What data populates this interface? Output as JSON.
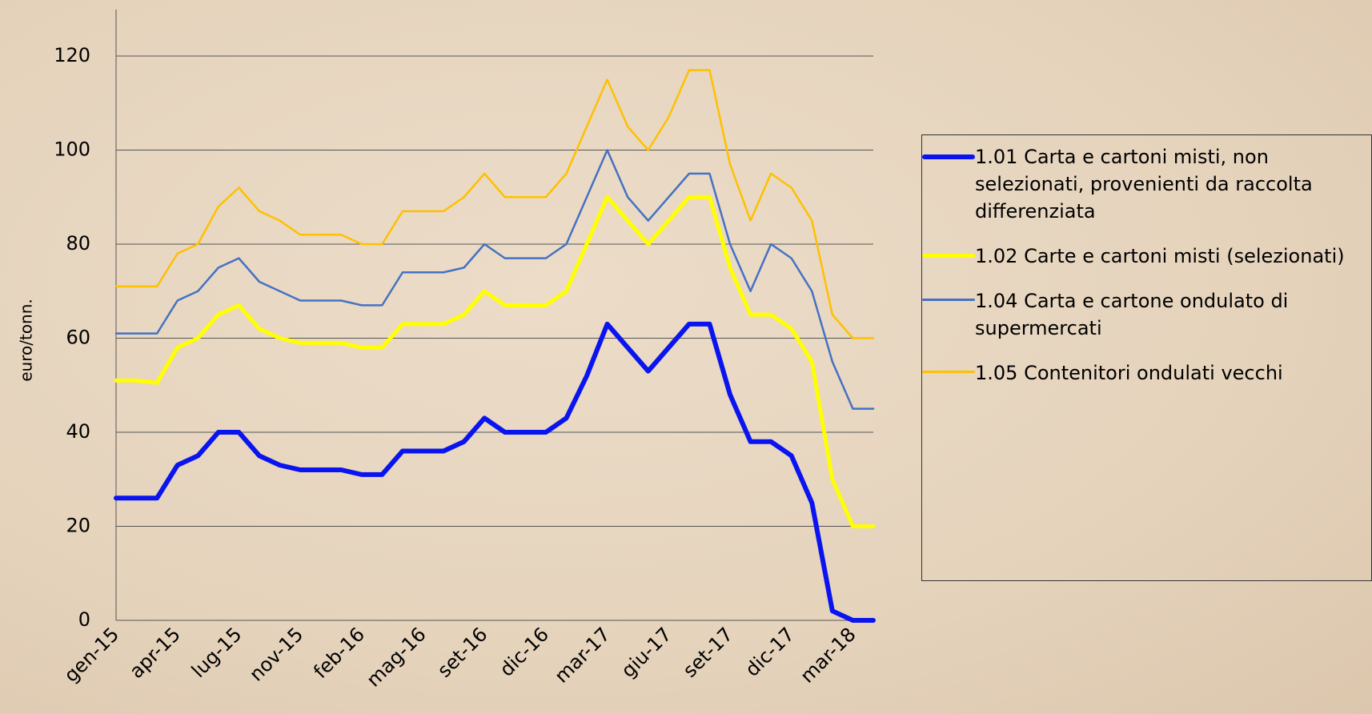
{
  "chart_data": {
    "type": "line",
    "y_label": "euro/tonn.",
    "categories": [
      "gen-15",
      null,
      null,
      "apr-15",
      null,
      null,
      "lug-15",
      null,
      null,
      "nov-15",
      null,
      null,
      "feb-16",
      null,
      null,
      "mag-16",
      null,
      null,
      "set-16",
      null,
      null,
      "dic-16",
      null,
      null,
      "mar-17",
      null,
      null,
      "giu-17",
      null,
      null,
      "set-17",
      null,
      null,
      "dic-17",
      null,
      null,
      "mar-18",
      null
    ],
    "series": [
      {
        "name": "1.01 Carta e cartoni misti, non selezionati, provenienti da raccolta differenziata",
        "color": "#0a14f0",
        "width": 6,
        "values": [
          26,
          26,
          26,
          33,
          35,
          40,
          40,
          35,
          33,
          32,
          32,
          32,
          31,
          31,
          36,
          36,
          36,
          38,
          43,
          40,
          40,
          40,
          43,
          52,
          63,
          58,
          53,
          58,
          63,
          63,
          48,
          38,
          38,
          35,
          25,
          2,
          0,
          0
        ]
      },
      {
        "name": "1.02 Carte e cartoni misti (selezionati)",
        "color": "#ffff00",
        "width": 5,
        "values": [
          51,
          51,
          50.5,
          58,
          60,
          65,
          67,
          62,
          60,
          59,
          59,
          59,
          58,
          58,
          63,
          63,
          63,
          65,
          70,
          67,
          67,
          67,
          70,
          80,
          90,
          85,
          80,
          85,
          90,
          90,
          75,
          65,
          65,
          62,
          55,
          30,
          20,
          20
        ]
      },
      {
        "name": "1.04 Carta e cartone ondulato di supermercati",
        "color": "#4472c4",
        "width": 2.5,
        "values": [
          61,
          61,
          61,
          68,
          70,
          75,
          77,
          72,
          70,
          68,
          68,
          68,
          67,
          67,
          74,
          74,
          74,
          75,
          80,
          77,
          77,
          77,
          80,
          90,
          100,
          90,
          85,
          90,
          95,
          95,
          80,
          70,
          80,
          77,
          70,
          55,
          45,
          45
        ]
      },
      {
        "name": "1.05 Contenitori ondulati vecchi",
        "color": "#ffc000",
        "width": 2.5,
        "values": [
          71,
          71,
          71,
          78,
          80,
          88,
          92,
          87,
          85,
          82,
          82,
          82,
          80,
          80,
          87,
          87,
          87,
          90,
          95,
          90,
          90,
          90,
          95,
          105,
          115,
          105,
          100,
          107,
          117,
          117,
          97,
          85,
          95,
          92,
          85,
          65,
          60,
          60
        ]
      }
    ],
    "ylim": [
      0,
      120
    ],
    "yticks": [
      0,
      20,
      40,
      60,
      80,
      100,
      120
    ],
    "grid": true
  }
}
